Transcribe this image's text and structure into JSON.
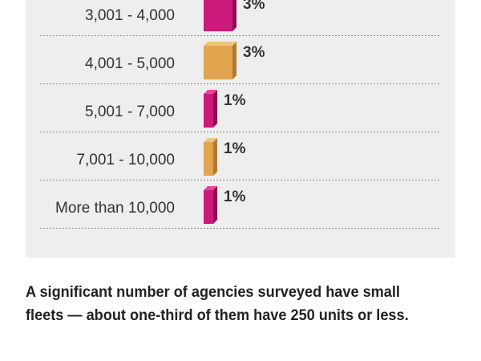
{
  "chart_data": {
    "type": "bar",
    "orientation": "horizontal",
    "categories": [
      "3,001 - 4,000",
      "4,001 - 5,000",
      "5,001 - 7,000",
      "7,001 - 10,000",
      "More than 10,000"
    ],
    "values": [
      3,
      3,
      1,
      1,
      1
    ],
    "value_labels": [
      "3%",
      "3%",
      "1%",
      "1%",
      "1%"
    ],
    "unit": "%",
    "xlim": [
      0,
      3
    ],
    "grid": false,
    "dividers": "dotted",
    "bar_style": "3d",
    "colors": {
      "magenta": "#cc1a7a",
      "magenta_top": "#e54a99",
      "magenta_side": "#8f0c52",
      "orange": "#e2a44f",
      "orange_top": "#f1c37c",
      "orange_side": "#b07a30"
    },
    "bar_colors": [
      "magenta",
      "orange",
      "magenta",
      "orange",
      "magenta"
    ]
  },
  "caption": "A significant number of agencies surveyed have small fleets —  about one-third of them have 250 units or less."
}
